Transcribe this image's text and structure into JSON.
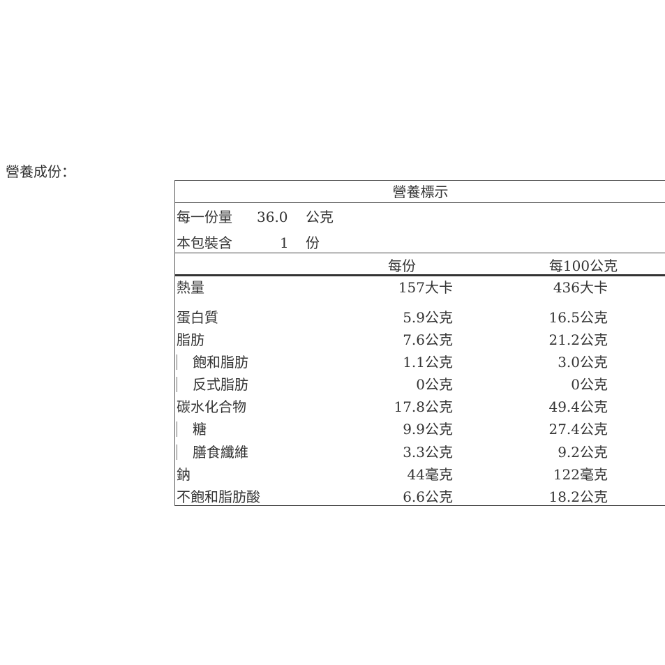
{
  "heading": "營養成份：",
  "label": {
    "title": "營養標示",
    "serving_size": {
      "label": "每一份量",
      "value": "36.0",
      "unit": "公克"
    },
    "servings_per_package": {
      "label": "本包裝含",
      "value": "1",
      "unit": "份"
    },
    "columns": [
      "每份",
      "每100公克"
    ],
    "rows": [
      {
        "name": "熱量",
        "per_serving": "157大卡",
        "per_100g": "436大卡",
        "indent": false
      },
      {
        "name": "蛋白質",
        "per_serving": "5.9公克",
        "per_100g": "16.5公克",
        "indent": false
      },
      {
        "name": "脂肪",
        "per_serving": "7.6公克",
        "per_100g": "21.2公克",
        "indent": false
      },
      {
        "name": "飽和脂肪",
        "per_serving": "1.1公克",
        "per_100g": "3.0公克",
        "indent": true
      },
      {
        "name": "反式脂肪",
        "per_serving": "0公克",
        "per_100g": "0公克",
        "indent": true
      },
      {
        "name": "碳水化合物",
        "per_serving": "17.8公克",
        "per_100g": "49.4公克",
        "indent": false
      },
      {
        "name": "糖",
        "per_serving": "9.9公克",
        "per_100g": "27.4公克",
        "indent": true
      },
      {
        "name": "膳食纖維",
        "per_serving": "3.3公克",
        "per_100g": "9.2公克",
        "indent": true
      },
      {
        "name": "鈉",
        "per_serving": "44毫克",
        "per_100g": "122毫克",
        "indent": false
      },
      {
        "name": "不飽和脂肪酸",
        "per_serving": "6.6公克",
        "per_100g": "18.2公克",
        "indent": false
      }
    ]
  }
}
